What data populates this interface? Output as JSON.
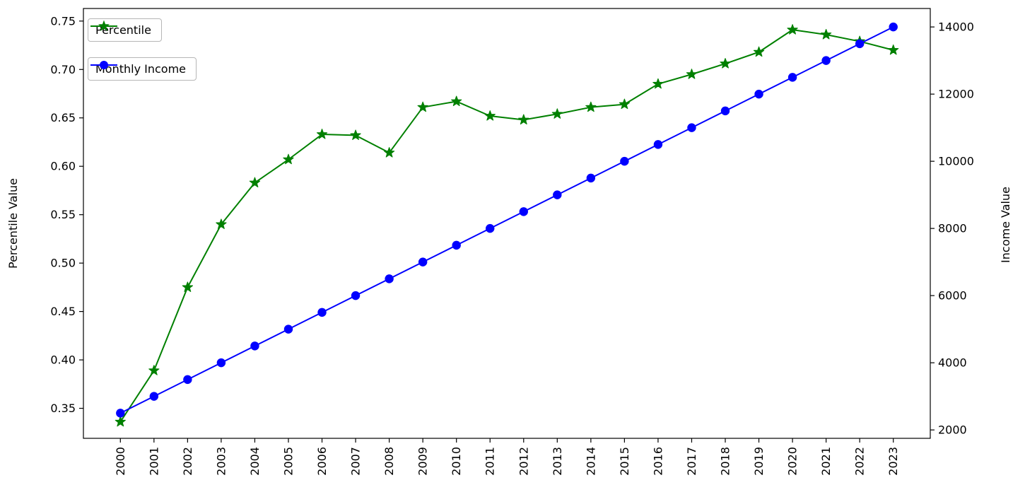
{
  "figure": {
    "background": "#ffffff"
  },
  "chart_data": {
    "type": "line",
    "title": "",
    "x": [
      2000,
      2001,
      2002,
      2003,
      2004,
      2005,
      2006,
      2007,
      2008,
      2009,
      2010,
      2011,
      2012,
      2013,
      2014,
      2015,
      2016,
      2017,
      2018,
      2019,
      2020,
      2021,
      2022,
      2023
    ],
    "x_tick_labels": [
      "2000",
      "2001",
      "2002",
      "2003",
      "2004",
      "2005",
      "2006",
      "2007",
      "2008",
      "2009",
      "2010",
      "2011",
      "2012",
      "2013",
      "2014",
      "2015",
      "2016",
      "2017",
      "2018",
      "2019",
      "2020",
      "2021",
      "2022",
      "2023"
    ],
    "series": [
      {
        "name": "Percentile",
        "axis": "left",
        "color": "#008000",
        "marker": "star",
        "values": [
          0.336,
          0.389,
          0.475,
          0.54,
          0.583,
          0.607,
          0.633,
          0.632,
          0.614,
          0.661,
          0.667,
          0.652,
          0.648,
          0.654,
          0.661,
          0.664,
          0.685,
          0.695,
          0.706,
          0.718,
          0.741,
          0.736,
          0.729,
          0.72
        ]
      },
      {
        "name": "Monthly Income",
        "axis": "right",
        "color": "#0000ff",
        "marker": "circle",
        "values": [
          2500,
          3000,
          3500,
          4000,
          4500,
          5000,
          5500,
          6000,
          6500,
          7000,
          7500,
          8000,
          8500,
          9000,
          9500,
          10000,
          10500,
          11000,
          11500,
          12000,
          12500,
          13000,
          13500,
          14000
        ]
      }
    ],
    "left_ylabel": "Percentile Value",
    "right_ylabel": "Income Value",
    "left_yticks": [
      0.35,
      0.4,
      0.45,
      0.5,
      0.55,
      0.6,
      0.65,
      0.7,
      0.75
    ],
    "right_yticks": [
      2000,
      4000,
      6000,
      8000,
      10000,
      12000,
      14000
    ],
    "left_ylim": [
      0.319,
      0.763
    ],
    "right_ylim": [
      1750,
      14550
    ],
    "xlim": [
      1998.9,
      2024.1
    ],
    "grid": false,
    "legend_position": "upper-left"
  }
}
